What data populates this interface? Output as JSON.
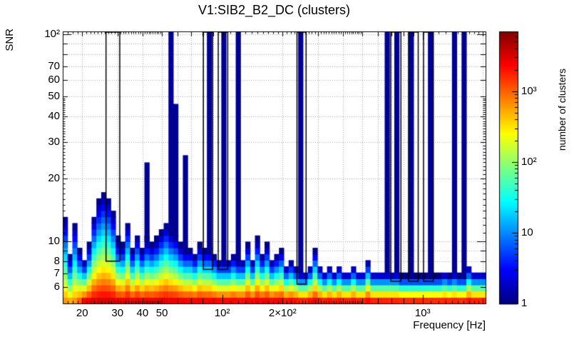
{
  "chart_data": {
    "type": "heatmap",
    "title": "V1:SIB2_B2_DC (clusters)",
    "xlabel": "Frequency [Hz]",
    "ylabel": "SNR",
    "colorbar_label": "number of clusters",
    "x_scale": "log",
    "y_scale": "log",
    "z_scale": "log",
    "x_range": [
      16,
      2060
    ],
    "y_range": [
      5,
      103
    ],
    "z_range": [
      1,
      7000
    ],
    "grid": true,
    "palette": "jet",
    "palette_stops": [
      [
        0.0,
        0,
        0,
        128
      ],
      [
        0.125,
        0,
        0,
        255
      ],
      [
        0.375,
        0,
        255,
        255
      ],
      [
        0.625,
        255,
        255,
        0
      ],
      [
        0.875,
        255,
        0,
        0
      ],
      [
        1.0,
        128,
        0,
        0
      ]
    ],
    "x_tick_labels": [
      {
        "v": 20,
        "t": "20"
      },
      {
        "v": 30,
        "t": "30"
      },
      {
        "v": 40,
        "t": "40"
      },
      {
        "v": 50,
        "t": "50"
      },
      {
        "v": 100,
        "t": "10²"
      },
      {
        "v": 200,
        "t": "2×10²"
      },
      {
        "v": 1000,
        "t": "10³"
      }
    ],
    "y_tick_labels": [
      {
        "v": 100,
        "t": "10²"
      },
      {
        "v": 70,
        "t": "70"
      },
      {
        "v": 60,
        "t": "60"
      },
      {
        "v": 50,
        "t": "50"
      },
      {
        "v": 40,
        "t": "40"
      },
      {
        "v": 30,
        "t": "30"
      },
      {
        "v": 20,
        "t": "20"
      },
      {
        "v": 10,
        "t": "10"
      },
      {
        "v": 8,
        "t": "8"
      },
      {
        "v": 7,
        "t": "7"
      },
      {
        "v": 6,
        "t": "6"
      }
    ],
    "z_tick_labels": [
      {
        "v": 1,
        "t": "1"
      },
      {
        "v": 10,
        "t": "10"
      },
      {
        "v": 100,
        "t": "10²"
      },
      {
        "v": 1000,
        "t": "10³"
      }
    ],
    "n_bins": 88,
    "bin_center_freqs": [
      16.4,
      17.4,
      18.4,
      19.4,
      20.5,
      21.7,
      22.9,
      24.2,
      25.6,
      27.1,
      28.6,
      30.2,
      31.9,
      33.8,
      35.7,
      37.7,
      39.9,
      42.1,
      44.5,
      47,
      49.7,
      52.5,
      55.5,
      58.7,
      62,
      65.6,
      69.3,
      73.2,
      77.4,
      81.8,
      86.4,
      91.3,
      96.5,
      102,
      107.8,
      113.9,
      120.4,
      127.2,
      134.5,
      142.1,
      150.2,
      158.7,
      167.7,
      177.3,
      187.3,
      198,
      209.2,
      221.1,
      233.7,
      247,
      261,
      275.9,
      291.6,
      308.1,
      325.7,
      344.2,
      363.8,
      384.5,
      406.4,
      429.5,
      454,
      479.8,
      507.1,
      536,
      566.5,
      598.7,
      632.8,
      668.8,
      706.9,
      747.1,
      789.6,
      834.6,
      882.1,
      932.3,
      985.3,
      1041.4,
      1100.7,
      1163.3,
      1229.5,
      1299.5,
      1373.5,
      1451.6,
      1534.2,
      1621.6,
      1713.9,
      1811.4,
      1914.5,
      2023.5
    ],
    "floor_snr": [
      13,
      8.5,
      12,
      9,
      8,
      9.5,
      13,
      15.5,
      17,
      16,
      13.5,
      10,
      9.5,
      12,
      9,
      10.5,
      9,
      10,
      9.5,
      10,
      11,
      12,
      11,
      10.5,
      9.5,
      9,
      9,
      8.5,
      9.5,
      9,
      9,
      8.5,
      8,
      8,
      8,
      8.5,
      8,
      8,
      9.5,
      8,
      10,
      8.5,
      9.5,
      8,
      8.5,
      9,
      7.5,
      8,
      7.5,
      7,
      7,
      7.5,
      9,
      7.5,
      7,
      7.5,
      7,
      7.5,
      7,
      7,
      7.5,
      7,
      7,
      8,
      7,
      7,
      7,
      7,
      7,
      7,
      6.8,
      6.8,
      6.8,
      6.8,
      6.8,
      6.8,
      6.8,
      6.8,
      6.8,
      7,
      6.8,
      7,
      6.8,
      6.8,
      7.5,
      7,
      7,
      7
    ],
    "spike_snr": [
      0,
      0,
      0,
      0,
      0,
      0,
      0,
      0,
      0,
      0,
      0,
      0,
      0,
      0,
      0,
      0,
      0,
      24,
      0,
      0,
      0,
      0,
      100,
      46,
      0,
      26,
      0,
      0,
      0,
      0,
      100,
      0,
      0,
      100,
      0,
      0,
      100,
      0,
      0,
      0,
      0,
      0,
      0,
      0,
      0,
      0,
      0,
      0,
      0,
      100,
      0,
      0,
      0,
      0,
      0,
      0,
      0,
      0,
      0,
      0,
      0,
      0,
      0,
      0,
      0,
      0,
      0,
      100,
      0,
      100,
      0,
      0,
      100,
      0,
      0,
      0,
      100,
      0,
      0,
      0,
      0,
      100,
      0,
      100,
      0,
      0,
      0,
      0
    ],
    "density_log10_max_default": 3.6,
    "density_log10_max_overrides": {
      "0": 2.9,
      "1": 2.9,
      "2": 2.9,
      "3": 3.2
    },
    "veto_boxes": [
      {
        "f_min": 26.3,
        "f_max": 30.8,
        "snr_min": 8,
        "snr_max": 100
      },
      {
        "f_min": 80.5,
        "f_max": 89.5,
        "snr_min": 7.3,
        "snr_max": 100
      },
      {
        "f_min": 95.5,
        "f_max": 106.5,
        "snr_min": 7.3,
        "snr_max": 100
      },
      {
        "f_min": 236,
        "f_max": 262,
        "snr_min": 6.2,
        "snr_max": 100
      },
      {
        "f_min": 693,
        "f_max": 779,
        "snr_min": 6.4,
        "snr_max": 100
      },
      {
        "f_min": 850,
        "f_max": 950,
        "snr_min": 6.4,
        "snr_max": 100
      },
      {
        "f_min": 1010,
        "f_max": 1130,
        "snr_min": 6.4,
        "snr_max": 100
      }
    ]
  }
}
